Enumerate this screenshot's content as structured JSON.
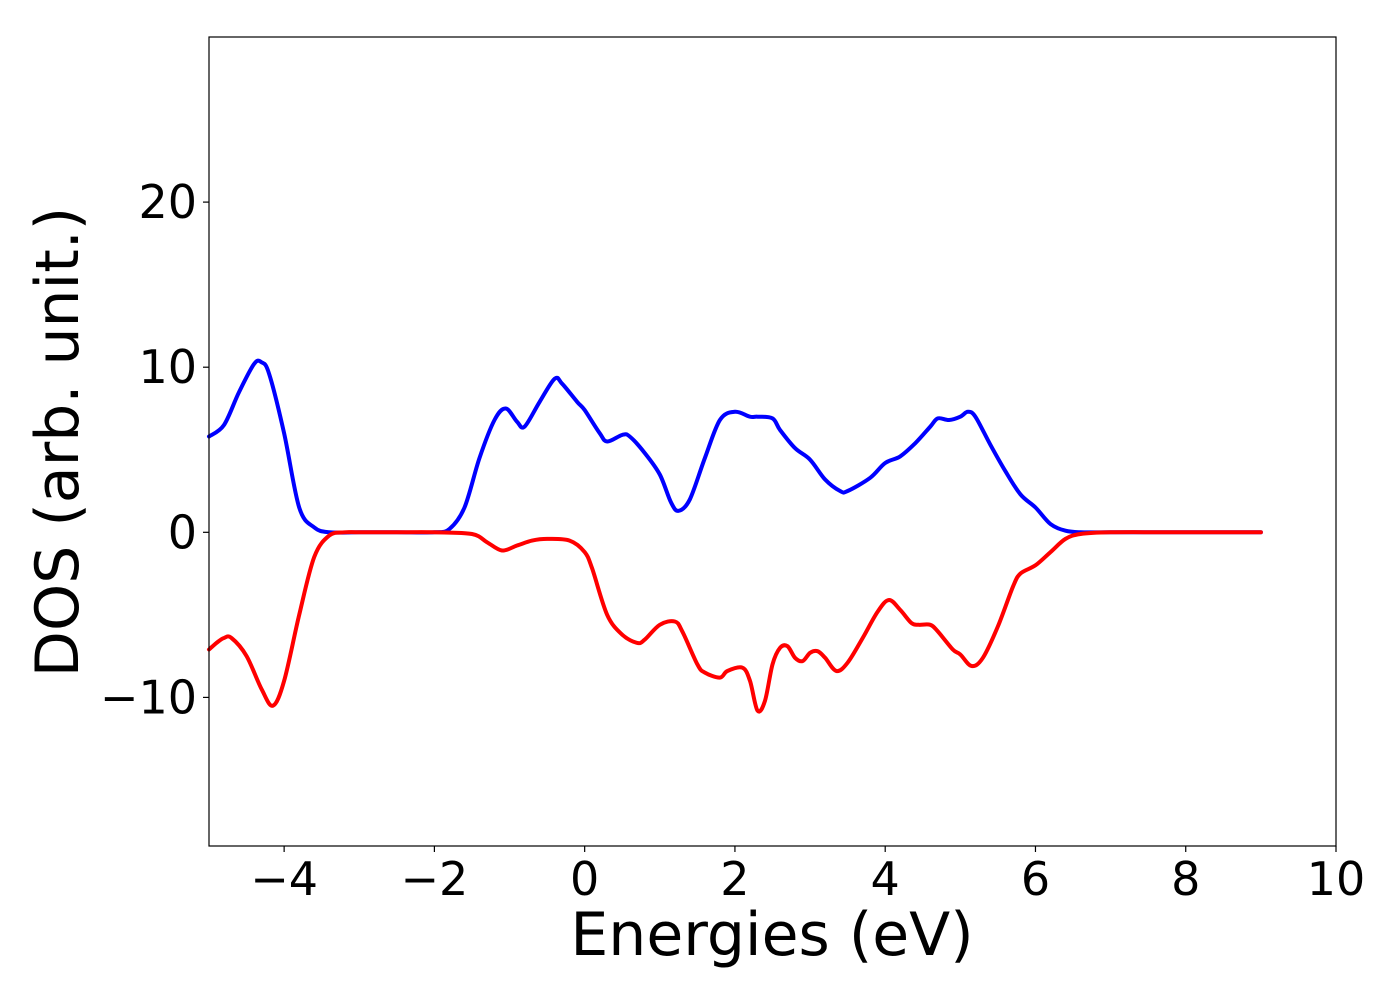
{
  "chart_data": {
    "type": "line",
    "title": "",
    "xlabel": "Energies (eV)",
    "ylabel": "DOS (arb. unit.)",
    "xlim": [
      -5,
      10
    ],
    "ylim": [
      -19,
      30
    ],
    "xticks": [
      -4,
      -2,
      0,
      2,
      4,
      6,
      8,
      10
    ],
    "xtick_labels": [
      "−4",
      "−2",
      "0",
      "2",
      "4",
      "6",
      "8",
      "10"
    ],
    "yticks": [
      -10,
      0,
      10,
      20
    ],
    "ytick_labels": [
      "−10",
      "0",
      "10",
      "20"
    ],
    "grid": false,
    "legend": "none",
    "series": [
      {
        "color": "#0000ff",
        "x": [
          -5.0,
          -4.8,
          -4.6,
          -4.4,
          -4.3,
          -4.2,
          -4.0,
          -3.8,
          -3.6,
          -3.4,
          -3.0,
          -2.5,
          -2.0,
          -1.8,
          -1.6,
          -1.4,
          -1.2,
          -1.05,
          -0.9,
          -0.8,
          -0.6,
          -0.4,
          -0.3,
          -0.1,
          0.0,
          0.2,
          0.3,
          0.5,
          0.6,
          0.8,
          1.0,
          1.15,
          1.25,
          1.4,
          1.6,
          1.8,
          2.0,
          2.2,
          2.3,
          2.5,
          2.6,
          2.8,
          3.0,
          3.2,
          3.4,
          3.5,
          3.8,
          4.0,
          4.2,
          4.4,
          4.6,
          4.7,
          4.85,
          5.0,
          5.1,
          5.2,
          5.4,
          5.6,
          5.8,
          6.0,
          6.2,
          6.4,
          6.6,
          7.0,
          8.0,
          9.0
        ],
        "y": [
          5.8,
          6.5,
          8.5,
          10.2,
          10.3,
          9.6,
          6.0,
          1.5,
          0.3,
          0.0,
          0.0,
          0.0,
          0.0,
          0.2,
          1.5,
          4.5,
          6.8,
          7.5,
          6.7,
          6.4,
          7.9,
          9.3,
          9.0,
          7.9,
          7.4,
          6.0,
          5.5,
          5.9,
          5.8,
          4.8,
          3.5,
          1.8,
          1.3,
          2.0,
          4.5,
          6.8,
          7.3,
          7.0,
          7.0,
          6.9,
          6.2,
          5.1,
          4.4,
          3.2,
          2.5,
          2.5,
          3.3,
          4.2,
          4.6,
          5.4,
          6.4,
          6.9,
          6.8,
          7.0,
          7.3,
          7.0,
          5.3,
          3.7,
          2.3,
          1.5,
          0.5,
          0.1,
          0.0,
          0.0,
          0.0,
          0.0
        ]
      },
      {
        "color": "#ff0000",
        "x": [
          -5.0,
          -4.9,
          -4.8,
          -4.7,
          -4.5,
          -4.3,
          -4.15,
          -4.0,
          -3.8,
          -3.6,
          -3.4,
          -3.2,
          -3.0,
          -2.5,
          -2.0,
          -1.5,
          -1.3,
          -1.1,
          -0.9,
          -0.7,
          -0.5,
          -0.2,
          0.0,
          0.1,
          0.3,
          0.5,
          0.7,
          0.8,
          1.0,
          1.2,
          1.3,
          1.5,
          1.6,
          1.8,
          1.9,
          2.1,
          2.2,
          2.3,
          2.4,
          2.5,
          2.6,
          2.7,
          2.8,
          2.9,
          3.0,
          3.1,
          3.2,
          3.35,
          3.5,
          3.7,
          3.9,
          4.05,
          4.2,
          4.35,
          4.45,
          4.6,
          4.7,
          4.9,
          5.0,
          5.15,
          5.3,
          5.5,
          5.7,
          5.8,
          6.0,
          6.2,
          6.4,
          6.6,
          7.0,
          8.0,
          9.0
        ],
        "y": [
          -7.1,
          -6.7,
          -6.4,
          -6.4,
          -7.5,
          -9.5,
          -10.5,
          -9.0,
          -5.0,
          -1.5,
          -0.2,
          0.0,
          0.0,
          0.0,
          0.0,
          -0.1,
          -0.6,
          -1.1,
          -0.8,
          -0.5,
          -0.4,
          -0.5,
          -1.2,
          -2.2,
          -5.0,
          -6.2,
          -6.7,
          -6.5,
          -5.6,
          -5.4,
          -6.0,
          -8.0,
          -8.5,
          -8.8,
          -8.4,
          -8.2,
          -9.0,
          -10.8,
          -10.2,
          -8.0,
          -7.0,
          -6.9,
          -7.6,
          -7.8,
          -7.3,
          -7.2,
          -7.6,
          -8.4,
          -7.9,
          -6.4,
          -4.8,
          -4.1,
          -4.7,
          -5.5,
          -5.6,
          -5.6,
          -6.0,
          -7.1,
          -7.4,
          -8.1,
          -7.6,
          -5.7,
          -3.3,
          -2.5,
          -2.0,
          -1.2,
          -0.4,
          -0.1,
          0.0,
          0.0,
          0.0
        ]
      }
    ]
  }
}
